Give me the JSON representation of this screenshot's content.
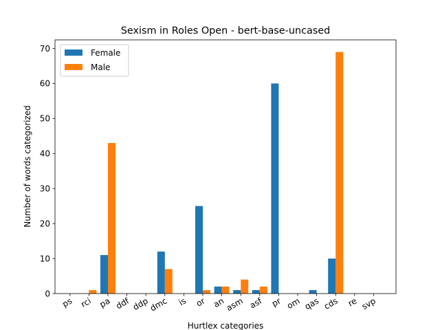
{
  "chart_data": {
    "type": "bar",
    "title": "Sexism in Roles Open - bert-base-uncased",
    "xlabel": "Hurtlex categories",
    "ylabel": "Number of words categorized",
    "categories": [
      "ps",
      "rci",
      "pa",
      "ddf",
      "ddp",
      "dmc",
      "is",
      "or",
      "an",
      "asm",
      "asf",
      "pr",
      "om",
      "qas",
      "cds",
      "re",
      "svp"
    ],
    "series": [
      {
        "name": "Female",
        "color": "#1f77b4",
        "values": [
          0,
          0,
          11,
          0,
          0,
          12,
          0,
          25,
          2,
          1,
          1,
          60,
          0,
          1,
          10,
          0,
          0
        ]
      },
      {
        "name": "Male",
        "color": "#ff7f0e",
        "values": [
          0,
          1,
          43,
          0,
          0,
          7,
          0,
          1,
          2,
          4,
          2,
          0,
          0,
          0,
          69,
          0,
          0
        ]
      }
    ],
    "ylim": [
      0,
      72.45
    ],
    "yticks": [
      0,
      10,
      20,
      30,
      40,
      50,
      60,
      70
    ],
    "grid": false,
    "legend_position": "top-left"
  }
}
